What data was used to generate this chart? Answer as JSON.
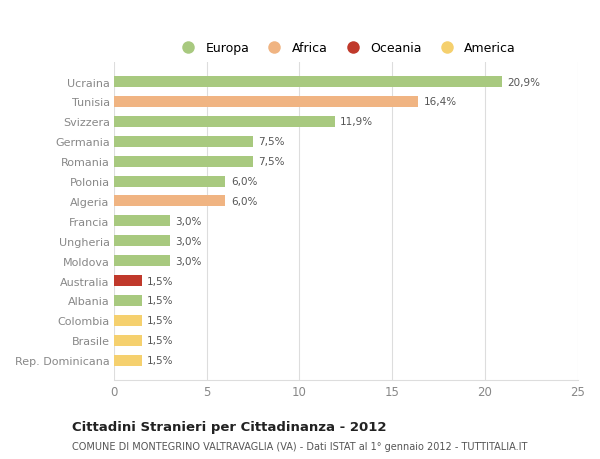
{
  "categories": [
    "Ucraina",
    "Tunisia",
    "Svizzera",
    "Germania",
    "Romania",
    "Polonia",
    "Algeria",
    "Francia",
    "Ungheria",
    "Moldova",
    "Australia",
    "Albania",
    "Colombia",
    "Brasile",
    "Rep. Dominicana"
  ],
  "values": [
    20.9,
    16.4,
    11.9,
    7.5,
    7.5,
    6.0,
    6.0,
    3.0,
    3.0,
    3.0,
    1.5,
    1.5,
    1.5,
    1.5,
    1.5
  ],
  "labels": [
    "20,9%",
    "16,4%",
    "11,9%",
    "7,5%",
    "7,5%",
    "6,0%",
    "6,0%",
    "3,0%",
    "3,0%",
    "3,0%",
    "1,5%",
    "1,5%",
    "1,5%",
    "1,5%",
    "1,5%"
  ],
  "colors": [
    "#a8c97f",
    "#f0b482",
    "#a8c97f",
    "#a8c97f",
    "#a8c97f",
    "#a8c97f",
    "#f0b482",
    "#a8c97f",
    "#a8c97f",
    "#a8c97f",
    "#c0392b",
    "#a8c97f",
    "#f5d06e",
    "#f5d06e",
    "#f5d06e"
  ],
  "legend_labels": [
    "Europa",
    "Africa",
    "Oceania",
    "America"
  ],
  "legend_colors": [
    "#a8c97f",
    "#f0b482",
    "#c0392b",
    "#f5d06e"
  ],
  "title": "Cittadini Stranieri per Cittadinanza - 2012",
  "subtitle": "COMUNE DI MONTEGRINO VALTRAVAGLIA (VA) - Dati ISTAT al 1° gennaio 2012 - TUTTITALIA.IT",
  "xlim": [
    0,
    25
  ],
  "xticks": [
    0,
    5,
    10,
    15,
    20,
    25
  ],
  "background_color": "#ffffff",
  "bar_height": 0.55,
  "grid_color": "#dddddd",
  "label_color": "#555555",
  "ytick_color": "#888888"
}
